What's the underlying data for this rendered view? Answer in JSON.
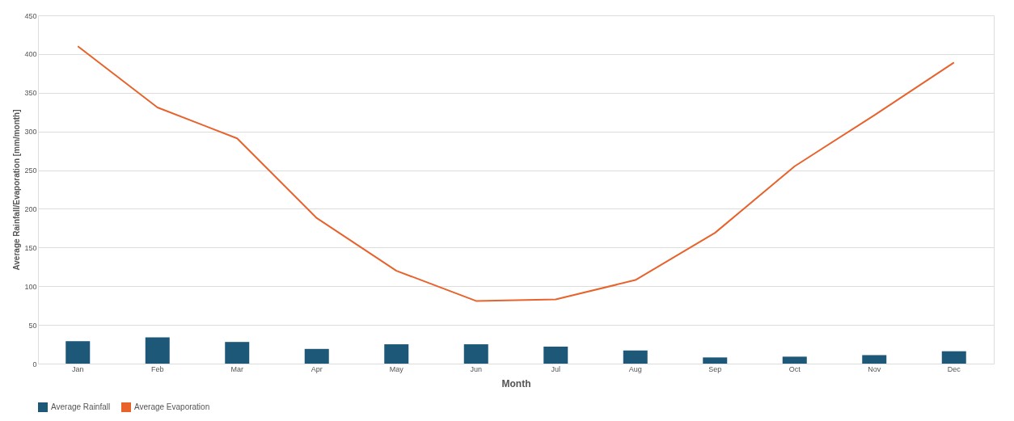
{
  "chart_data": {
    "type": "bar",
    "xlabel": "Month",
    "ylabel": "Average Rainfall/Evaporation [mm/month]",
    "categories": [
      "Jan",
      "Feb",
      "Mar",
      "Apr",
      "May",
      "Jun",
      "Jul",
      "Aug",
      "Sep",
      "Oct",
      "Nov",
      "Dec"
    ],
    "series": [
      {
        "name": "Average Rainfall",
        "color": "#1d5878",
        "values": [
          29,
          34,
          28,
          19,
          25,
          25,
          22,
          17,
          8,
          9,
          11,
          16
        ]
      },
      {
        "name": "Average Evaporation",
        "type": "line",
        "color": "#e8622c",
        "values": [
          410,
          331,
          291,
          188,
          120,
          81,
          83,
          108,
          169,
          255,
          321,
          389
        ]
      }
    ],
    "ylim": [
      0,
      450
    ],
    "yticks": [
      0,
      50,
      100,
      150,
      200,
      250,
      300,
      350,
      400,
      450
    ],
    "grid": "y",
    "legend": "bottom"
  }
}
